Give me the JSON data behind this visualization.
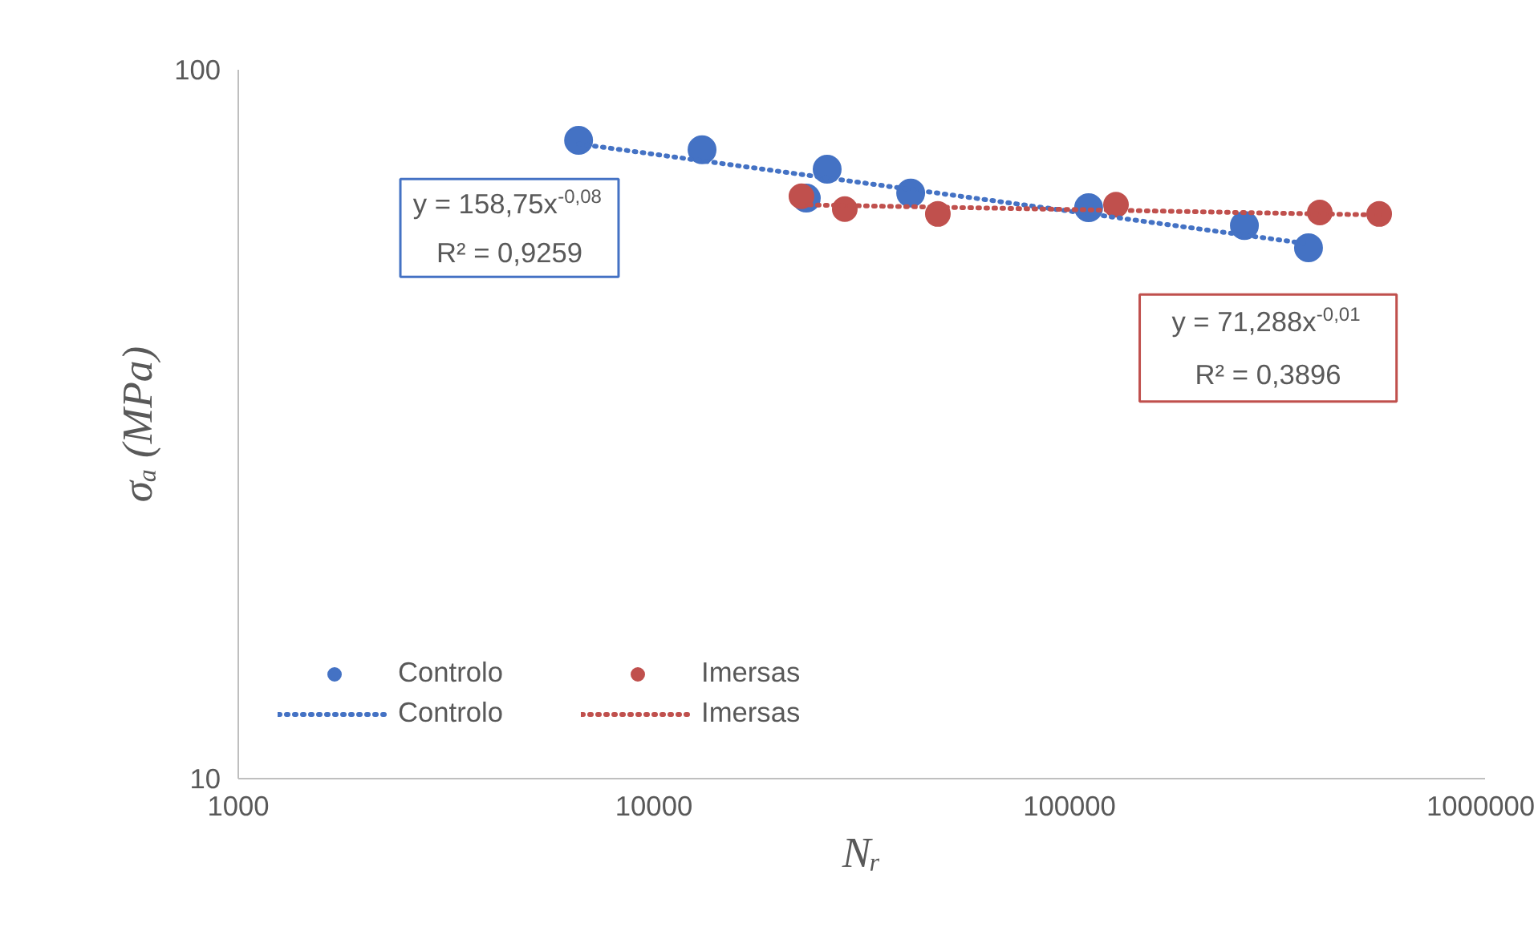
{
  "chart_data": {
    "type": "scatter",
    "xlabel": "Nᵣ",
    "ylabel": "σₐ (MPa)",
    "log": "xy",
    "xlim": [
      1000,
      1000000
    ],
    "ylim": [
      10,
      100
    ],
    "xticks": [
      1000,
      10000,
      100000,
      1000000
    ],
    "yticks": [
      10,
      100
    ],
    "grid": false,
    "legend": "bottom left",
    "marker": "circle",
    "series": [
      {
        "name": "Controlo",
        "color": "#4472c4",
        "x": [
          6590,
          13060,
          26120,
          23270,
          41490,
          111200,
          263600,
          369600,
          376000
        ],
        "values": [
          79.5,
          77.1,
          72.4,
          65.9,
          67.0,
          63.9,
          60.3,
          null,
          56.1
        ]
      },
      {
        "name": "Imersas",
        "color": "#c0504d",
        "x": [
          22650,
          28800,
          48230,
          129400,
          400300,
          556200
        ],
        "values": [
          66.3,
          63.6,
          62.6,
          64.5,
          62.9,
          62.6
        ]
      },
      {
        "name": "Controlo",
        "type": "line",
        "line_style": "dotted",
        "marker": "none",
        "color": "#4472c4",
        "x": [
          6590,
          376000
        ],
        "values": [
          78.6,
          56.8
        ]
      },
      {
        "name": "Imersas",
        "type": "line",
        "line_style": "dotted",
        "marker": "none",
        "color": "#c0504d",
        "x": [
          22650,
          556200
        ],
        "values": [
          64.5,
          62.4
        ]
      }
    ],
    "annotations": [
      "y = 158,75x$^{-0,08}$\nR² = 0,9259",
      "y = 71,288x$^{-0,01}$\nR² = 0,3896"
    ]
  }
}
